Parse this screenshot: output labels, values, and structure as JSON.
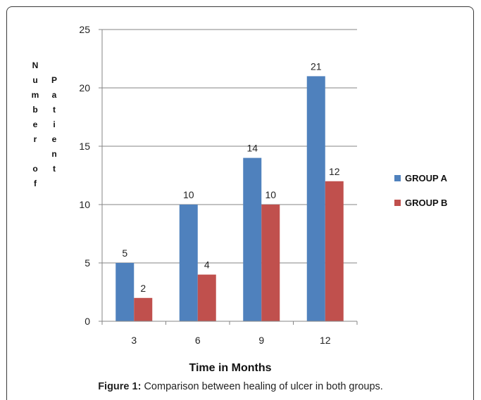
{
  "chart_data": {
    "type": "bar",
    "categories": [
      "3",
      "6",
      "9",
      "12"
    ],
    "series": [
      {
        "name": "GROUP A",
        "values": [
          5,
          10,
          14,
          21
        ],
        "color": "#4f81bd"
      },
      {
        "name": "GROUP B",
        "values": [
          2,
          4,
          10,
          12
        ],
        "color": "#c0504d"
      }
    ],
    "ylim": [
      0,
      25
    ],
    "yticks": [
      "0",
      "5",
      "10",
      "15",
      "20",
      "25"
    ],
    "xlabel": "Time in Months",
    "ylabel_col1": [
      "N",
      "u",
      "m",
      "b",
      "e",
      "r",
      "",
      "o",
      "f"
    ],
    "ylabel_col2": [
      "P",
      "a",
      "t",
      "i",
      "e",
      "n",
      "t"
    ],
    "legend_position": "right",
    "grid": true
  },
  "caption": {
    "label": "Figure 1:",
    "text": " Comparison between healing of ulcer in both groups."
  }
}
